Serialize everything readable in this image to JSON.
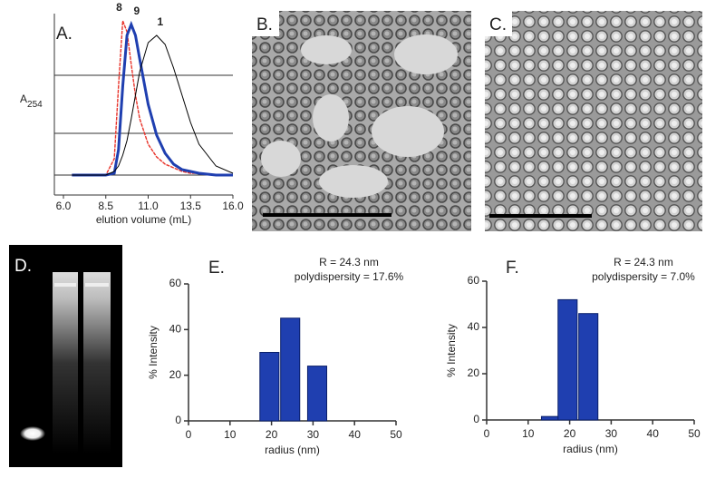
{
  "chart_data": [
    {
      "type": "line",
      "panel_label": "A.",
      "xlabel": "elution volume (mL)",
      "ylabel": "A",
      "ylabel_sub": "254",
      "x": [
        6.5,
        7.5,
        8.5,
        9,
        9.25,
        9.5,
        9.75,
        10,
        10.25,
        10.5,
        11,
        11.5,
        12,
        12.5,
        13,
        13.5,
        14,
        15,
        16
      ],
      "xlim": [
        6,
        16
      ],
      "xticks": [
        {
          "value": 6,
          "label": "6.0"
        },
        {
          "value": 8.5,
          "label": "8.5"
        },
        {
          "value": 11,
          "label": "11.0"
        },
        {
          "value": 13.5,
          "label": "13.5"
        },
        {
          "value": 16,
          "label": "16.0"
        }
      ],
      "ylim": [
        0,
        1
      ],
      "grid_lines": [
        0.11,
        0.34,
        0.66
      ],
      "series": [
        {
          "name": "8",
          "color": "#e8332a",
          "values": [
            0.11,
            0.11,
            0.11,
            0.2,
            0.6,
            0.96,
            0.9,
            0.72,
            0.55,
            0.42,
            0.28,
            0.21,
            0.17,
            0.15,
            0.13,
            0.12,
            0.12,
            0.11,
            0.11
          ]
        },
        {
          "name": "9",
          "color": "#1f3fb0",
          "values": [
            0.11,
            0.11,
            0.11,
            0.12,
            0.25,
            0.6,
            0.88,
            0.94,
            0.88,
            0.75,
            0.5,
            0.33,
            0.23,
            0.17,
            0.14,
            0.13,
            0.12,
            0.11,
            0.11
          ]
        },
        {
          "name": "1",
          "color": "#000000",
          "values": [
            0.11,
            0.11,
            0.11,
            0.13,
            0.16,
            0.22,
            0.3,
            0.42,
            0.55,
            0.68,
            0.84,
            0.88,
            0.83,
            0.7,
            0.55,
            0.4,
            0.28,
            0.16,
            0.12
          ]
        }
      ]
    },
    {
      "type": "bar",
      "panel_label": "E.",
      "annotations": [
        "R = 24.3 nm",
        "polydispersity = 17.6%"
      ],
      "xlabel": "radius (nm)",
      "ylabel": "% Intensity",
      "color": "#1f3fb0",
      "x": [
        19.5,
        24.5,
        31
      ],
      "values": [
        30,
        45,
        24
      ],
      "xlim": [
        0,
        50
      ],
      "xticks": [
        0,
        10,
        20,
        30,
        40,
        50
      ],
      "ylim": [
        0,
        60
      ],
      "yticks": [
        0,
        20,
        40,
        60
      ]
    },
    {
      "type": "bar",
      "panel_label": "F.",
      "annotations": [
        "R = 24.3 nm",
        "polydispersity = 7.0%"
      ],
      "xlabel": "radius (nm)",
      "ylabel": "% Intensity",
      "color": "#1f3fb0",
      "x": [
        15.5,
        19.5,
        24.5
      ],
      "values": [
        1.5,
        52,
        46
      ],
      "xlim": [
        0,
        50
      ],
      "xticks": [
        0,
        10,
        20,
        30,
        40,
        50
      ],
      "ylim": [
        0,
        60
      ],
      "yticks": [
        0,
        20,
        40,
        60
      ]
    }
  ],
  "image_panels": [
    {
      "label": "B."
    },
    {
      "label": "C."
    },
    {
      "label": "D."
    }
  ]
}
